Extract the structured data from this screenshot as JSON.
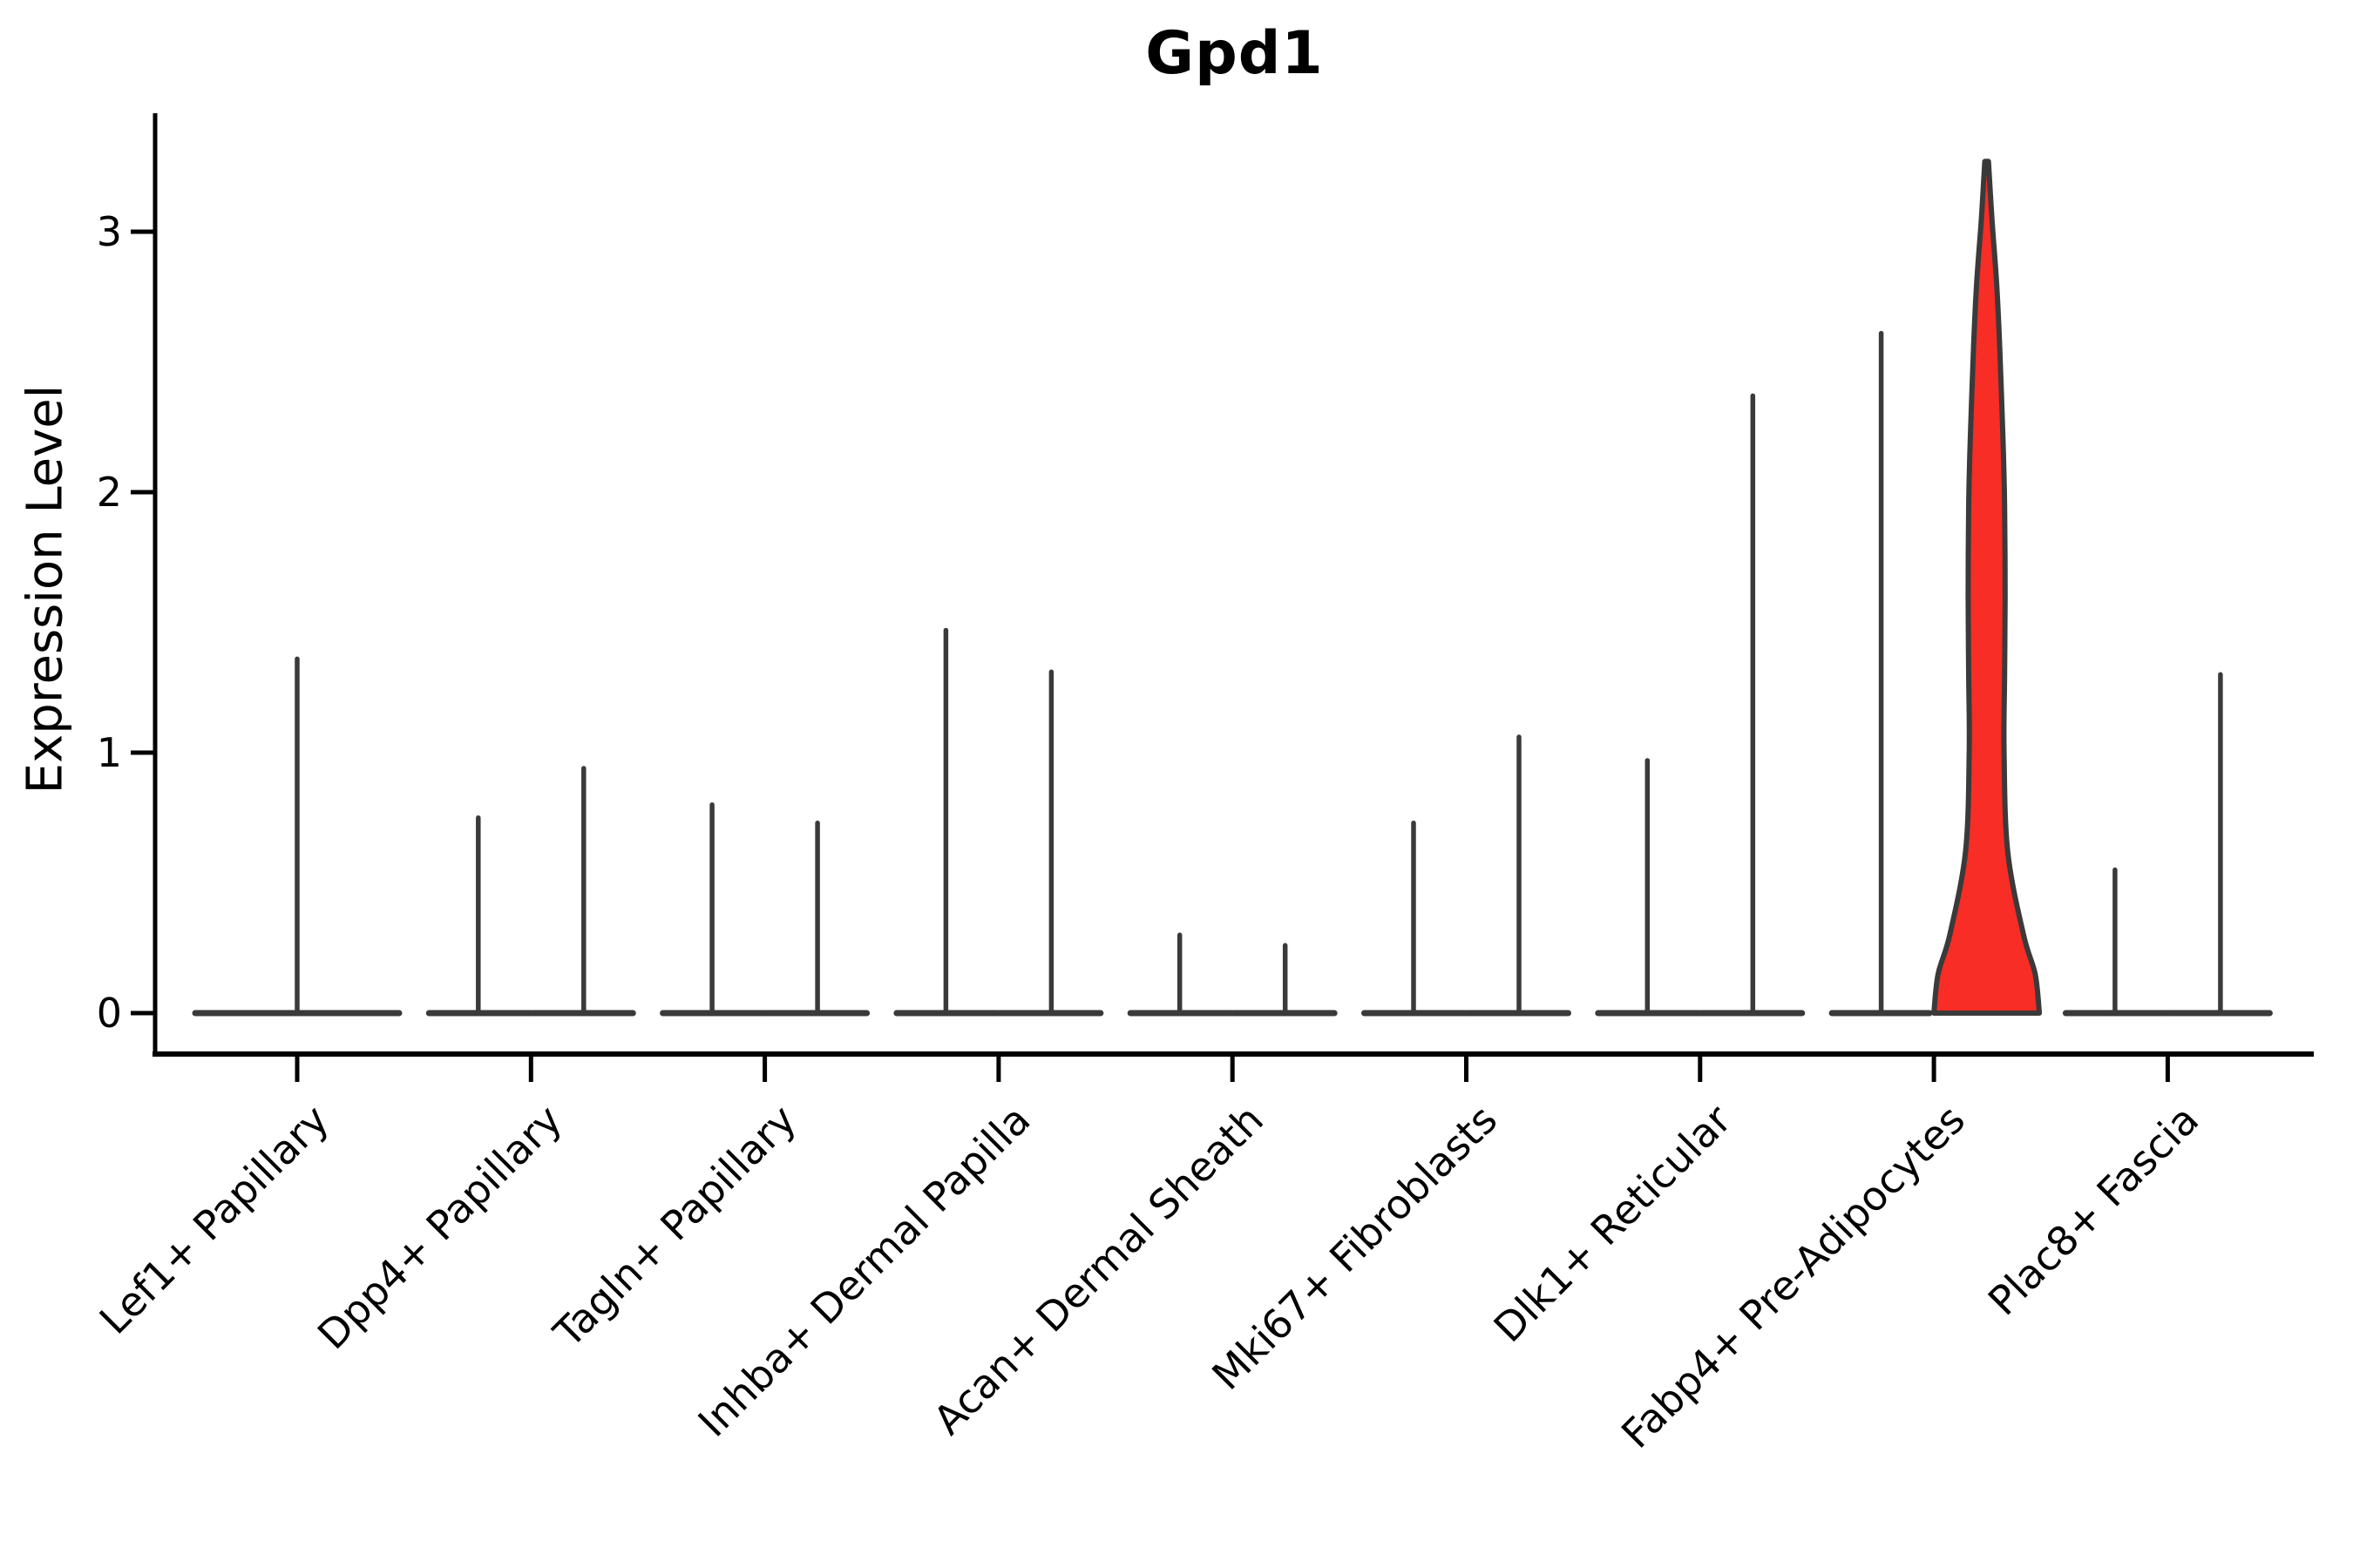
{
  "title": "Gpd1",
  "axes": {
    "ylabel": "Expression Level",
    "ytick_labels": [
      "0",
      "1",
      "2",
      "3"
    ]
  },
  "chart_data": {
    "type": "violin",
    "title": "Gpd1",
    "xlabel": "",
    "ylabel": "Expression Level",
    "ylim": [
      0,
      3.45
    ],
    "yticks": [
      0,
      1,
      2,
      3
    ],
    "grid": false,
    "legend": "none",
    "categories": [
      "Lef1+ Papillary",
      "Dpp4+ Papillary",
      "Tagln+ Papillary",
      "Inhba+ Dermal Papilla",
      "Acan+ Dermal Sheath",
      "Mki67+ Fibroblasts",
      "Dlk1+ Reticular",
      "Fabp4+ Pre-Adipocytes",
      "Plac8+ Fascia"
    ],
    "violins": [
      {
        "category": "Lef1+ Papillary",
        "groups": [
          {
            "max": 1.36,
            "filled": false,
            "span": "full"
          }
        ]
      },
      {
        "category": "Dpp4+ Papillary",
        "groups": [
          {
            "max": 0.75,
            "filled": false
          },
          {
            "max": 0.94,
            "filled": false
          }
        ]
      },
      {
        "category": "Tagln+ Papillary",
        "groups": [
          {
            "max": 0.8,
            "filled": false
          },
          {
            "max": 0.73,
            "filled": false
          }
        ]
      },
      {
        "category": "Inhba+ Dermal Papilla",
        "groups": [
          {
            "max": 1.47,
            "filled": false
          },
          {
            "max": 1.31,
            "filled": false
          }
        ]
      },
      {
        "category": "Acan+ Dermal Sheath",
        "groups": [
          {
            "max": 0.3,
            "filled": false
          },
          {
            "max": 0.26,
            "filled": false
          }
        ]
      },
      {
        "category": "Mki67+ Fibroblasts",
        "groups": [
          {
            "max": 0.73,
            "filled": false
          },
          {
            "max": 1.06,
            "filled": false
          }
        ]
      },
      {
        "category": "Dlk1+ Reticular",
        "groups": [
          {
            "max": 0.97,
            "filled": false
          },
          {
            "max": 2.37,
            "filled": false
          }
        ]
      },
      {
        "category": "Fabp4+ Pre-Adipocytes",
        "groups": [
          {
            "max": 2.61,
            "filled": false
          },
          {
            "max": 3.27,
            "filled": true,
            "profile": [
              [
                0.0,
                1.0
              ],
              [
                0.15,
                0.92
              ],
              [
                0.3,
                0.7
              ],
              [
                0.62,
                0.4
              ],
              [
                1.0,
                0.33
              ],
              [
                1.3,
                0.34
              ],
              [
                1.6,
                0.35
              ],
              [
                1.95,
                0.34
              ],
              [
                2.2,
                0.31
              ],
              [
                2.55,
                0.25
              ],
              [
                2.8,
                0.19
              ],
              [
                3.05,
                0.1
              ],
              [
                3.27,
                0.035
              ]
            ]
          }
        ]
      },
      {
        "category": "Plac8+ Fascia",
        "groups": [
          {
            "max": 0.55,
            "filled": false
          },
          {
            "max": 1.3,
            "filled": false
          }
        ]
      }
    ],
    "colors": {
      "violin_line": "#3a3a3a",
      "highlight_fill": "#f82d26",
      "axis": "#000000",
      "background": "#ffffff"
    }
  }
}
